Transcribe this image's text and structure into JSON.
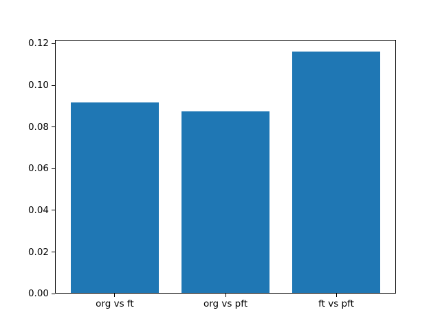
{
  "chart_data": {
    "type": "bar",
    "title": "",
    "categories": [
      "org vs ft",
      "org vs pft",
      "ft vs pft"
    ],
    "values": [
      0.0917,
      0.0874,
      0.1161
    ],
    "bar_color": "#1f77b4",
    "bar_width": 0.8,
    "xlabel": "",
    "ylabel": "",
    "xlim": [
      -0.54,
      2.54
    ],
    "ylim": [
      0,
      0.1219
    ],
    "yticks": [
      0,
      0.02,
      0.04,
      0.06,
      0.08,
      0.1,
      0.12
    ],
    "ytick_labels": [
      "0.00",
      "0.02",
      "0.04",
      "0.06",
      "0.08",
      "0.10",
      "0.12"
    ],
    "grid": false,
    "legend": false
  }
}
